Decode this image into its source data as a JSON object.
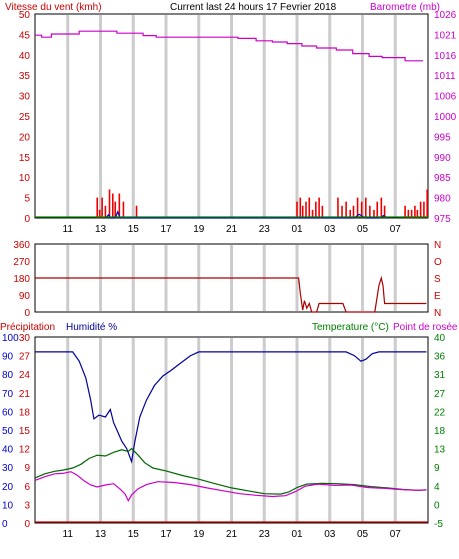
{
  "colors": {
    "bg": "#ffffff",
    "grid": "#cccccc",
    "wind_axis": "#cc0000",
    "baro_axis": "#cc00cc",
    "hum_axis": "#0000cc",
    "temp_axis": "#008000",
    "dark": "#000000",
    "wind_gust": "#ee0000",
    "wind_avg": "#0000cc",
    "rain": "#008000",
    "baro_line": "#cc00cc",
    "direction": "#aa0000",
    "humidity": "#000099",
    "temperature": "#006600",
    "dewpoint": "#cc00cc",
    "precip_line": "#cc0000"
  },
  "header": {
    "title": "Current last 24 hours 17 Fevrier 2018"
  },
  "chart_data": [
    {
      "type": "bar",
      "title": "Current last 24 hours 17 Fevrier 2018",
      "ylabel": "Vitesse du vent (kmh)",
      "y2label": "Barometre (mb)",
      "ylim": [
        0,
        50
      ],
      "y2lim": [
        975,
        1026
      ],
      "yticks": [
        "0",
        "5",
        "10",
        "15",
        "20",
        "25",
        "30",
        "35",
        "40",
        "45",
        "50"
      ],
      "y2ticks": [
        "975",
        "980",
        "985",
        "990",
        "995",
        "1000",
        "1006",
        "1011",
        "1016",
        "1021",
        "1026"
      ],
      "xticks": [
        "11",
        "13",
        "15",
        "17",
        "19",
        "21",
        "23",
        "01",
        "03",
        "05",
        "07"
      ],
      "grid": true,
      "series": [
        {
          "key": "gust",
          "kind": "bars",
          "points": [
            [
              12.8,
              5
            ],
            [
              12.95,
              2
            ],
            [
              13.1,
              5
            ],
            [
              13.3,
              3
            ],
            [
              13.55,
              7
            ],
            [
              13.75,
              6
            ],
            [
              13.9,
              4
            ],
            [
              14.15,
              6
            ],
            [
              14.4,
              4
            ],
            [
              15.2,
              3
            ],
            [
              1.0,
              4
            ],
            [
              1.2,
              5
            ],
            [
              1.35,
              3
            ],
            [
              1.55,
              4
            ],
            [
              1.75,
              5
            ],
            [
              1.95,
              2
            ],
            [
              2.15,
              4
            ],
            [
              2.35,
              5
            ],
            [
              2.55,
              3
            ],
            [
              3.5,
              5
            ],
            [
              3.75,
              3
            ],
            [
              4.0,
              4
            ],
            [
              4.25,
              2
            ],
            [
              4.45,
              3
            ],
            [
              4.7,
              5
            ],
            [
              4.95,
              4
            ],
            [
              5.2,
              5
            ],
            [
              5.45,
              3
            ],
            [
              5.7,
              2
            ],
            [
              5.9,
              4
            ],
            [
              6.15,
              5
            ],
            [
              6.35,
              3
            ],
            [
              7.6,
              3
            ],
            [
              7.8,
              2
            ],
            [
              8.0,
              2
            ],
            [
              8.2,
              3
            ],
            [
              8.35,
              2
            ],
            [
              8.55,
              4
            ],
            [
              8.75,
              4
            ],
            [
              8.95,
              7
            ]
          ]
        },
        {
          "key": "avg",
          "kind": "line",
          "points": [
            [
              13.3,
              0
            ],
            [
              13.5,
              0.8
            ],
            [
              13.6,
              0
            ],
            [
              13.9,
              0
            ],
            [
              14.05,
              1.5
            ],
            [
              14.2,
              0
            ],
            [
              4.5,
              0
            ],
            [
              4.8,
              0.9
            ],
            [
              5.0,
              0.4
            ],
            [
              5.2,
              0
            ],
            [
              6.0,
              0
            ],
            [
              6.3,
              0.6
            ],
            [
              6.5,
              0
            ]
          ]
        },
        {
          "key": "rain",
          "kind": "line",
          "baseline": true,
          "points": [
            [
              9.0,
              0
            ],
            [
              9.1,
              0
            ]
          ]
        },
        {
          "key": "baro",
          "kind": "line",
          "axis": "y2",
          "step": true,
          "points": [
            [
              9.0,
              1020.7
            ],
            [
              9.4,
              1020.2
            ],
            [
              10.0,
              1021.0
            ],
            [
              11.7,
              1021.7
            ],
            [
              14.0,
              1021.2
            ],
            [
              15.6,
              1020.6
            ],
            [
              16.4,
              1020.2
            ],
            [
              21.4,
              1019.9
            ],
            [
              22.5,
              1019.3
            ],
            [
              23.5,
              1019.0
            ],
            [
              0.4,
              1018.6
            ],
            [
              1.3,
              1018.0
            ],
            [
              2.2,
              1017.5
            ],
            [
              3.4,
              1017.0
            ],
            [
              4.4,
              1016.1
            ],
            [
              5.4,
              1015.4
            ],
            [
              6.2,
              1015.1
            ],
            [
              7.6,
              1014.3
            ],
            [
              8.7,
              1014.3
            ]
          ]
        }
      ]
    },
    {
      "type": "line",
      "title": "",
      "ylabel": "",
      "ylim": [
        0,
        360
      ],
      "yticks": [
        "0",
        "90",
        "180",
        "270",
        "360"
      ],
      "y2ticks": [
        "N",
        "E",
        "S",
        "O",
        "N"
      ],
      "xticks": [],
      "grid": true,
      "series": [
        {
          "key": "direction",
          "kind": "line",
          "points": [
            [
              9.0,
              180
            ],
            [
              1.1,
              180
            ],
            [
              1.2,
              100
            ],
            [
              1.35,
              10
            ],
            [
              1.45,
              60
            ],
            [
              1.6,
              20
            ],
            [
              1.75,
              45
            ],
            [
              1.9,
              0
            ],
            [
              2.2,
              0
            ],
            [
              2.35,
              45
            ],
            [
              2.5,
              45
            ],
            [
              3.8,
              45
            ],
            [
              4.0,
              0
            ],
            [
              5.6,
              0
            ],
            [
              5.75,
              0
            ],
            [
              6.0,
              140
            ],
            [
              6.15,
              180
            ],
            [
              6.25,
              140
            ],
            [
              6.35,
              45
            ],
            [
              8.9,
              45
            ]
          ]
        }
      ]
    },
    {
      "type": "line",
      "title": "",
      "ylabel": "Précipitation",
      "y2label": "Humidité %",
      "y3label": "Temperature (°C)",
      "y4label": "Point de rosée (°C)",
      "ylim": [
        0,
        100
      ],
      "y_precip_lim": [
        0,
        30
      ],
      "y_temp_lim": [
        -5,
        40
      ],
      "yticks": [
        "0",
        "10",
        "20",
        "30",
        "40",
        "50",
        "60",
        "70",
        "80",
        "90",
        "100"
      ],
      "y_precip_ticks": [
        "0",
        "3",
        "6",
        "9",
        "12",
        "15",
        "18",
        "21",
        "24",
        "27",
        "30"
      ],
      "y_temp_ticks": [
        "-5",
        "0",
        "4",
        "9",
        "13",
        "18",
        "22",
        "27",
        "31",
        "36",
        "40"
      ],
      "xticks": [
        "11",
        "13",
        "15",
        "17",
        "19",
        "21",
        "23",
        "01",
        "03",
        "05",
        "07"
      ],
      "grid": true,
      "series": [
        {
          "key": "humidity",
          "kind": "line",
          "points": [
            [
              9.0,
              92
            ],
            [
              11.3,
              92
            ],
            [
              11.7,
              87
            ],
            [
              12.1,
              78
            ],
            [
              12.4,
              66
            ],
            [
              12.6,
              56
            ],
            [
              12.9,
              58
            ],
            [
              13.3,
              57
            ],
            [
              13.6,
              61
            ],
            [
              13.8,
              54
            ],
            [
              14.0,
              50
            ],
            [
              14.3,
              44
            ],
            [
              14.6,
              40
            ],
            [
              14.9,
              33
            ],
            [
              15.1,
              44
            ],
            [
              15.4,
              57
            ],
            [
              15.8,
              66
            ],
            [
              16.3,
              74
            ],
            [
              16.8,
              79
            ],
            [
              17.3,
              82
            ],
            [
              17.9,
              86
            ],
            [
              18.5,
              90
            ],
            [
              19.0,
              92
            ],
            [
              23.9,
              92
            ],
            [
              4.0,
              92
            ],
            [
              4.5,
              90
            ],
            [
              4.9,
              87
            ],
            [
              5.2,
              88
            ],
            [
              5.6,
              91
            ],
            [
              6.0,
              92
            ],
            [
              8.9,
              92
            ]
          ]
        },
        {
          "key": "temperature",
          "kind": "line",
          "axis": "temp",
          "points": [
            [
              9.0,
              5.9
            ],
            [
              9.6,
              6.9
            ],
            [
              10.2,
              7.5
            ],
            [
              10.7,
              7.8
            ],
            [
              11.3,
              8.3
            ],
            [
              11.8,
              9.2
            ],
            [
              12.3,
              10.6
            ],
            [
              12.8,
              11.4
            ],
            [
              13.3,
              11.2
            ],
            [
              13.8,
              12.1
            ],
            [
              14.3,
              12.7
            ],
            [
              14.7,
              12.3
            ],
            [
              14.9,
              13.0
            ],
            [
              15.3,
              11.4
            ],
            [
              15.7,
              9.6
            ],
            [
              16.2,
              8.3
            ],
            [
              17.0,
              7.6
            ],
            [
              18.0,
              6.5
            ],
            [
              19.0,
              5.6
            ],
            [
              20.0,
              4.5
            ],
            [
              21.0,
              3.5
            ],
            [
              22.0,
              2.8
            ],
            [
              23.0,
              2.1
            ],
            [
              0.0,
              2.0
            ],
            [
              0.5,
              2.5
            ],
            [
              1.0,
              3.6
            ],
            [
              1.6,
              4.4
            ],
            [
              2.5,
              4.6
            ],
            [
              3.5,
              4.5
            ],
            [
              4.5,
              4.3
            ],
            [
              5.5,
              3.8
            ],
            [
              6.5,
              3.5
            ],
            [
              7.5,
              3.1
            ],
            [
              8.5,
              2.9
            ],
            [
              8.9,
              3.0
            ]
          ]
        },
        {
          "key": "dewpoint",
          "kind": "line",
          "axis": "temp",
          "points": [
            [
              9.0,
              5.3
            ],
            [
              9.6,
              6.2
            ],
            [
              10.2,
              6.9
            ],
            [
              10.7,
              7.0
            ],
            [
              11.2,
              7.4
            ],
            [
              11.6,
              6.5
            ],
            [
              12.0,
              5.2
            ],
            [
              12.4,
              4.2
            ],
            [
              12.8,
              3.7
            ],
            [
              13.3,
              4.2
            ],
            [
              13.8,
              4.5
            ],
            [
              14.2,
              3.2
            ],
            [
              14.5,
              2.0
            ],
            [
              14.7,
              0.4
            ],
            [
              14.9,
              1.8
            ],
            [
              15.3,
              3.3
            ],
            [
              15.8,
              4.3
            ],
            [
              16.5,
              5.0
            ],
            [
              17.5,
              4.8
            ],
            [
              18.5,
              4.3
            ],
            [
              19.5,
              3.5
            ],
            [
              20.5,
              2.8
            ],
            [
              21.5,
              2.1
            ],
            [
              22.5,
              1.7
            ],
            [
              23.5,
              1.4
            ],
            [
              0.3,
              1.6
            ],
            [
              0.9,
              2.6
            ],
            [
              1.5,
              3.9
            ],
            [
              2.3,
              4.4
            ],
            [
              3.3,
              4.1
            ],
            [
              4.3,
              4.2
            ],
            [
              5.3,
              3.6
            ],
            [
              6.3,
              3.4
            ],
            [
              7.3,
              3.1
            ],
            [
              8.3,
              2.9
            ],
            [
              8.9,
              3.0
            ]
          ]
        },
        {
          "key": "precip",
          "kind": "line",
          "axis": "precip",
          "points": [
            [
              9.0,
              0
            ],
            [
              8.9,
              0
            ]
          ]
        }
      ]
    }
  ]
}
